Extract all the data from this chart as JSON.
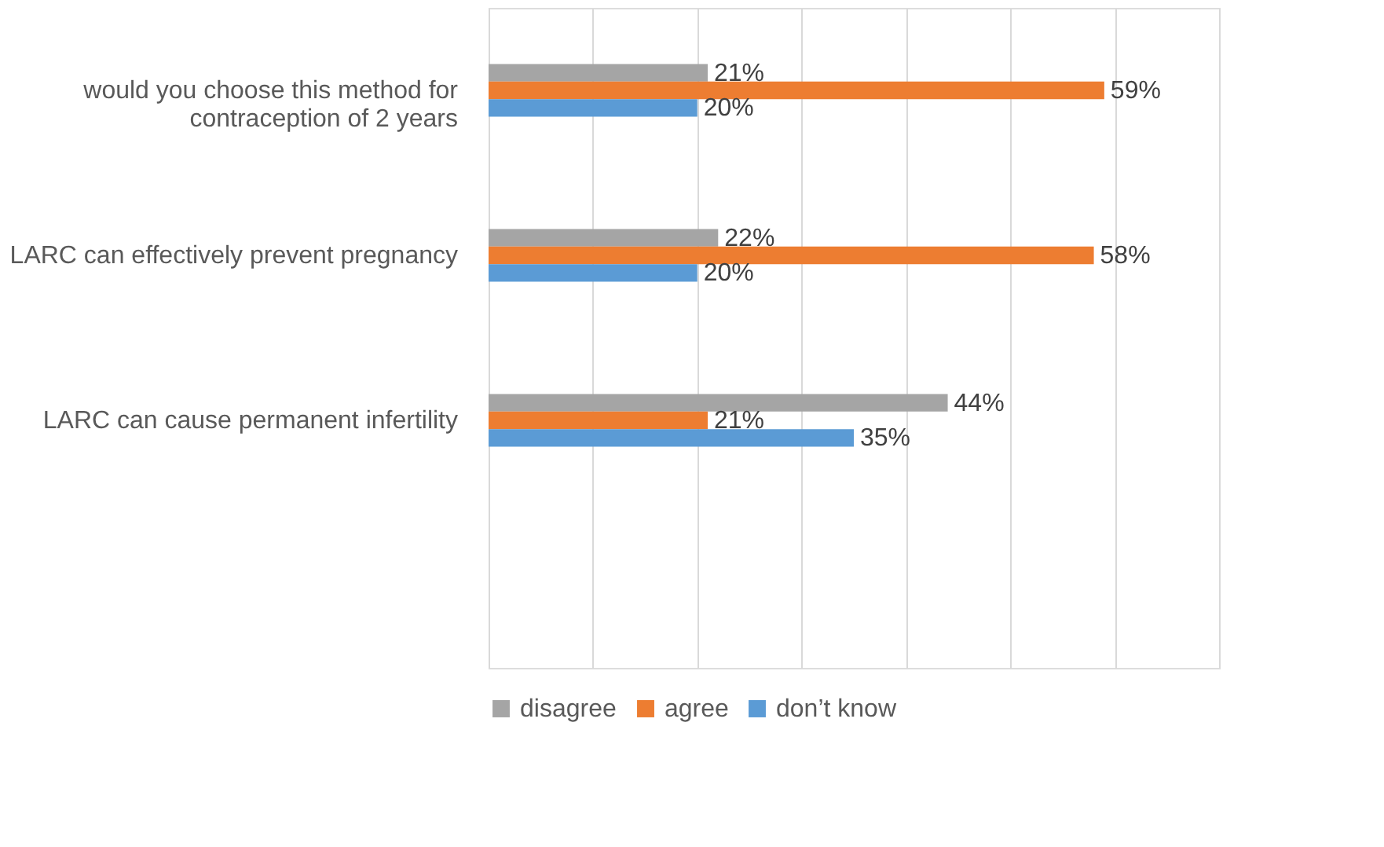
{
  "chart_data": {
    "type": "bar",
    "orientation": "horizontal",
    "categories": [
      "would you choose this method for contraception of 2 years",
      "LARC can effectively prevent pregnancy",
      "LARC can cause permanent infertility",
      null
    ],
    "series": [
      {
        "name": "disagree",
        "color": "#a5a5a5",
        "values": [
          21,
          22,
          44,
          null
        ],
        "value_labels": [
          "21%",
          "22%",
          "44%",
          null
        ]
      },
      {
        "name": "agree",
        "color": "#ed7d31",
        "values": [
          59,
          58,
          21,
          null
        ],
        "value_labels": [
          "59%",
          "58%",
          "21%",
          null
        ]
      },
      {
        "name": "don’t know",
        "color": "#5b9bd5",
        "values": [
          20,
          20,
          35,
          null
        ],
        "value_labels": [
          "20%",
          "20%",
          "35%",
          null
        ]
      }
    ],
    "xlim": [
      0,
      70
    ],
    "xticks": [
      {
        "value": 0,
        "label": null
      },
      {
        "value": 10,
        "label": null
      },
      {
        "value": 20,
        "label": null
      },
      {
        "value": 30,
        "label": null
      },
      {
        "value": 40,
        "label": null
      },
      {
        "value": 50,
        "label": null
      },
      {
        "value": 60,
        "label": null
      },
      {
        "value": 70,
        "label": null
      }
    ],
    "tick_labels": "y",
    "grid": "x",
    "legend": "bottom"
  }
}
